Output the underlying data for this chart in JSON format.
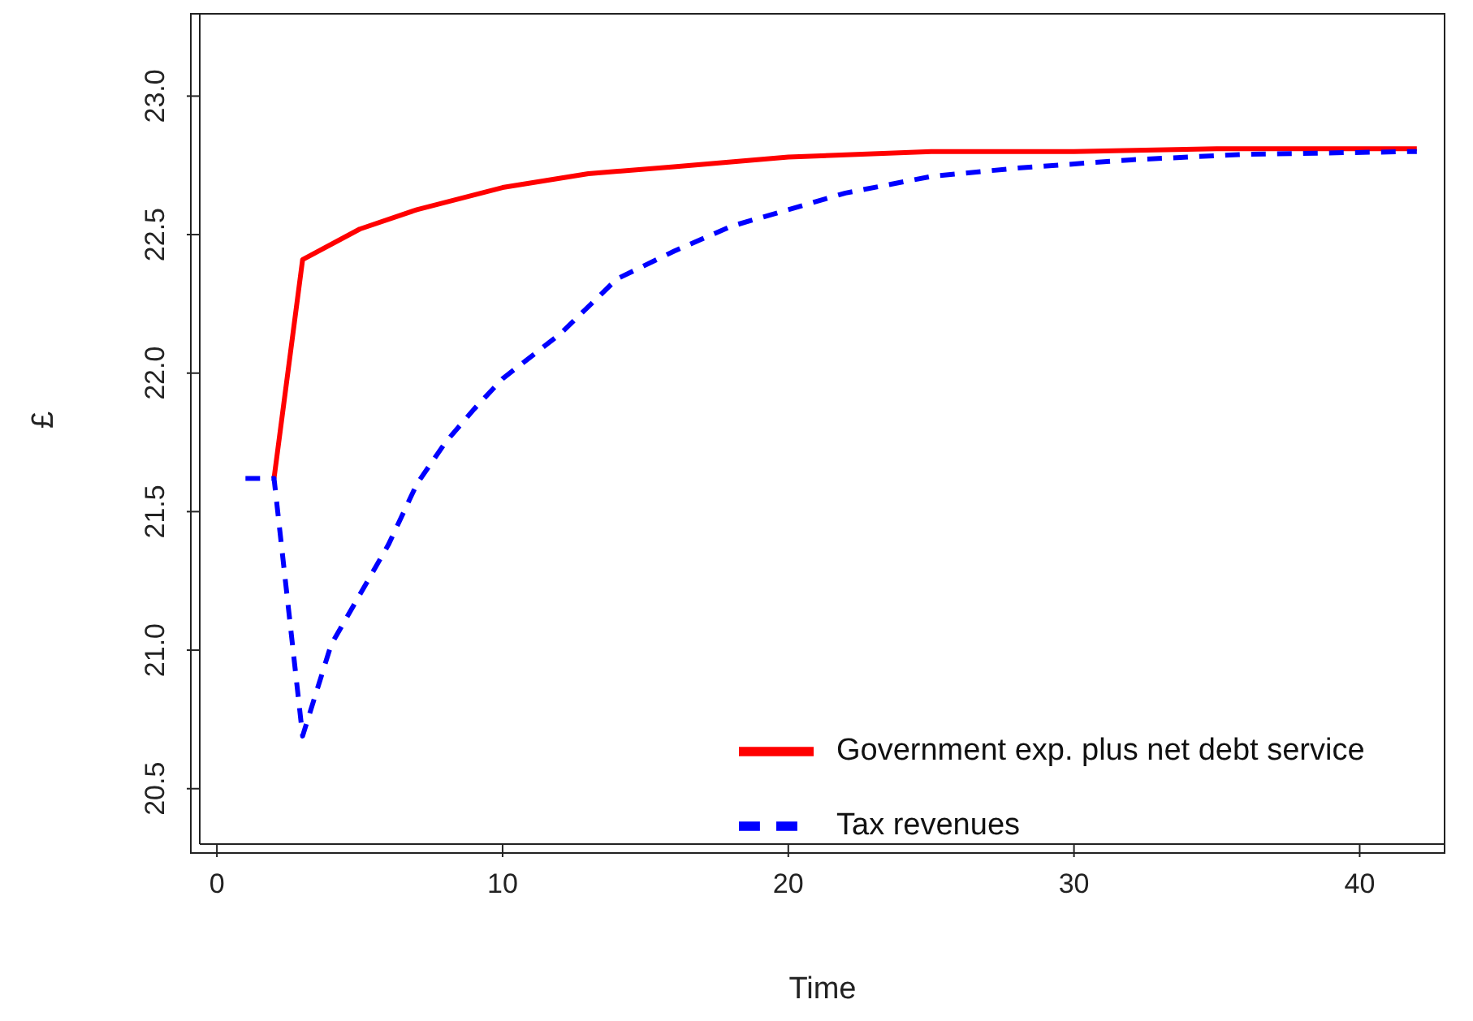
{
  "chart_data": {
    "type": "line",
    "xlabel": "Time",
    "ylabel": "£",
    "xlim": [
      -0.6,
      43.0
    ],
    "xticks": [
      0,
      10,
      20,
      30,
      40
    ],
    "ylim": [
      20.3,
      23.3
    ],
    "yticks": [
      20.5,
      {
        "value": 21,
        "label": "21.0"
      },
      21.5,
      {
        "value": 22,
        "label": "22.0"
      },
      22.5,
      {
        "value": 23,
        "label": "23.0"
      }
    ],
    "grid": false,
    "legend": "bottom right",
    "marker": "none",
    "series": [
      {
        "name": "Government exp. plus net debt service",
        "color": "#ff0000",
        "line_style": "solid",
        "x": [
          2,
          3,
          5,
          7,
          10,
          13,
          16,
          20,
          25,
          30,
          35,
          42
        ],
        "values": [
          21.62,
          22.41,
          22.52,
          22.59,
          22.67,
          22.72,
          22.745,
          22.78,
          22.8,
          22.8,
          22.81,
          22.81
        ]
      },
      {
        "name": "Tax revenues",
        "color": "#0000ff",
        "line_style": "dashed",
        "x": [
          1,
          2,
          3,
          4,
          5,
          6,
          7,
          8,
          9,
          10,
          12,
          14,
          16,
          18,
          20,
          22,
          25,
          28,
          32,
          36,
          42
        ],
        "values": [
          21.62,
          21.62,
          20.69,
          21.02,
          21.2,
          21.38,
          21.6,
          21.75,
          21.87,
          21.98,
          22.14,
          22.34,
          22.44,
          22.53,
          22.59,
          22.65,
          22.71,
          22.74,
          22.77,
          22.79,
          22.8
        ]
      }
    ]
  }
}
